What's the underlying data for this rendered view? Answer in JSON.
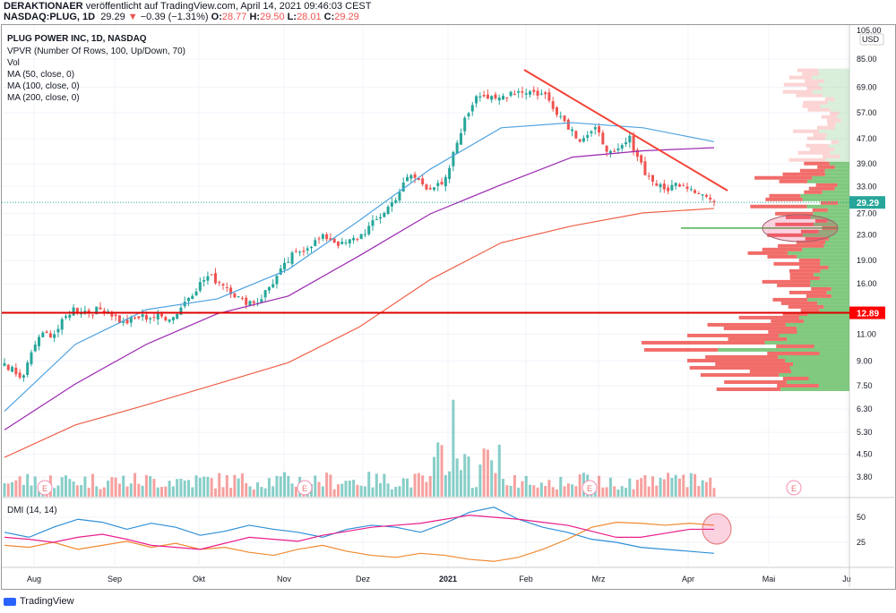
{
  "header": {
    "publisher": "DERAKTIONAER",
    "published": "veröffentlicht auf TradingView.com, April 14, 2021 09:46:03 CEST",
    "symbol": "NASDAQ:PLUG, 1D",
    "last": "29.29",
    "change": "−0.39 (−1.31%)",
    "o_label": "O:",
    "o": "28.77",
    "h_label": "H:",
    "h": "29.50",
    "l_label": "L:",
    "l": "28.01",
    "c_label": "C:",
    "c": "29.29"
  },
  "legend": {
    "title": "PLUG POWER INC, 1D, NASDAQ",
    "vpvr": "VPVR (Number Of Rows, 100, Up/Down, 70)",
    "vol": "Vol",
    "ma50": "MA (50, close, 0)",
    "ma100": "MA (100, close, 0)",
    "ma200": "MA (200, close, 0)",
    "dmi": "DMI (14, 14)"
  },
  "footer": {
    "brand": "TradingView"
  },
  "colors": {
    "up": "#26a69a",
    "down": "#ef5350",
    "ma50": "#4fa3e0",
    "ma100": "#9c27b0",
    "ma200": "#f06048",
    "dmi_plus": "#2d8fd8",
    "dmi_minus": "#f08a30",
    "adx": "#e91e8c"
  },
  "chart_data": {
    "type": "line",
    "title": "PLUG POWER INC, 1D, NASDAQ",
    "currency": "USD",
    "scale": "log",
    "price_ticks": [
      "85.00",
      "69.00",
      "57.00",
      "47.00",
      "39.00",
      "33.00",
      "27.00",
      "23.00",
      "19.00",
      "16.00",
      "11.00",
      "9.00",
      "7.50",
      "6.30",
      "5.30",
      "4.50",
      "3.80"
    ],
    "top_tick": "105.00",
    "last_price": "29.29",
    "hline_price": "12.89",
    "x_ticks": [
      "Aug",
      "Sep",
      "Okt",
      "Nov",
      "Dez",
      "2021",
      "Feb",
      "Mrz",
      "Apr",
      "Mai",
      "Ju"
    ],
    "weekly_closes": [
      8.9,
      7.8,
      10.8,
      11.1,
      13.3,
      13.0,
      13.3,
      11.9,
      12.5,
      12.5,
      12.5,
      14.8,
      16.9,
      16.0,
      14.1,
      14.0,
      16.5,
      19.6,
      21.3,
      22.7,
      21.3,
      22.7,
      25.6,
      29.5,
      36,
      33,
      33,
      50,
      67,
      62,
      67,
      67,
      65,
      55,
      47,
      50,
      41,
      47,
      36,
      32,
      34,
      32,
      29.29
    ],
    "ma50": [
      6.2,
      10.2,
      13.2,
      14.3,
      17.8,
      25.6,
      37.5,
      51,
      53,
      51,
      46
    ],
    "ma100": [
      5.4,
      7.6,
      10.2,
      12.8,
      14.6,
      19.7,
      26.9,
      33.4,
      41,
      43,
      44
    ],
    "ma200": [
      4.4,
      5.6,
      6.5,
      7.6,
      8.9,
      11.6,
      16.5,
      21.7,
      24.6,
      27.1,
      28
    ],
    "dmi_ticks": [
      "50",
      "25"
    ],
    "dmi_plus": [
      35,
      30,
      40,
      48,
      45,
      38,
      44,
      40,
      32,
      36,
      42,
      38,
      35,
      30,
      38,
      42,
      40,
      35,
      44,
      55,
      60,
      48,
      40,
      35,
      28,
      25,
      20,
      18,
      16,
      14
    ],
    "dmi_minus": [
      22,
      20,
      25,
      18,
      22,
      26,
      20,
      24,
      18,
      20,
      15,
      12,
      18,
      22,
      16,
      12,
      10,
      14,
      12,
      8,
      6,
      10,
      18,
      28,
      40,
      45,
      44,
      42,
      44,
      42
    ],
    "adx": [
      30,
      28,
      25,
      30,
      33,
      28,
      22,
      20,
      18,
      24,
      30,
      28,
      26,
      32,
      36,
      40,
      42,
      44,
      48,
      52,
      50,
      48,
      45,
      42,
      36,
      30,
      30,
      34,
      38,
      38
    ]
  }
}
